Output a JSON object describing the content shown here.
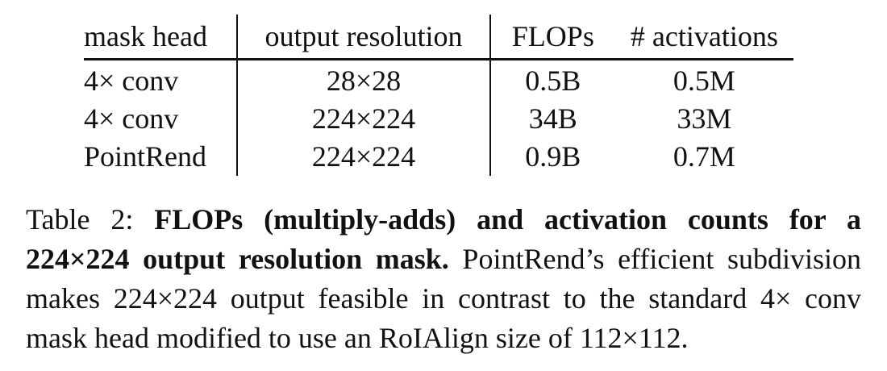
{
  "table": {
    "headers": [
      "mask head",
      "output resolution",
      "FLOPs",
      "# activations"
    ],
    "rows": [
      [
        "4× conv",
        "28×28",
        "0.5B",
        "0.5M"
      ],
      [
        "4× conv",
        "224×224",
        "34B",
        "33M"
      ],
      [
        "PointRend",
        "224×224",
        "0.9B",
        "0.7M"
      ]
    ]
  },
  "caption": {
    "label": "Table 2:",
    "bold": "FLOPs (multiply-adds) and activation counts for a 224×224 output resolution mask.",
    "body": "PointRend’s efficient subdivision makes 224×224 output feasible in contrast to the standard 4× conv mask head modified to use an RoIAlign size of 112×112."
  }
}
